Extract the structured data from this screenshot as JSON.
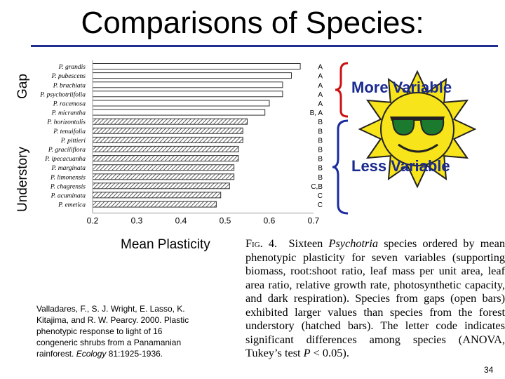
{
  "slide": {
    "title": "Comparisons of Species:",
    "y_label_gap": "Gap",
    "y_label_understory": "Understory",
    "callout_more": "More Variable",
    "callout_less": "Less Variable",
    "citation_text": "Valladares, F., S. J. Wright, E. Lasso, K. Kitajima, and R. W. Pearcy. 2000. Plastic phenotypic response to light of 16 congeneric shrubs from a Panamanian rainforest. ",
    "citation_journal": "Ecology",
    "citation_end": " 81:1925-1936.",
    "page_number": "34",
    "colors": {
      "title_rule": "#1f2f8f",
      "bracket_red": "#cc1111",
      "bracket_blue": "#1a2a9f",
      "sun": "#f7e41a",
      "callout": "#1a2a8f"
    }
  },
  "caption": {
    "fig_label": "Fig. 4.",
    "part1": "Sixteen ",
    "genus": "Psychotria",
    "part2": " species ordered by mean phenotypic plasticity for seven variables (supporting biomass, root:shoot ratio, leaf mass per unit area, leaf area ratio, relative growth rate, photosynthetic capacity, and dark respiration). Species from gaps (open bars) exhibited larger values than species from the forest understory (hatched bars). The letter code indicates significant differences among species (ANOVA, Tukey’s test ",
    "p_symbol": "P",
    "part3": " < 0.05)."
  },
  "chart_data": {
    "type": "bar",
    "orientation": "horizontal",
    "xlabel": "Mean Plasticity",
    "xlim": [
      0.2,
      0.7
    ],
    "xticks": [
      "0.2",
      "0.3",
      "0.4",
      "0.5",
      "0.6",
      "0.7"
    ],
    "categories": [
      "P. grandis",
      "P. pubescens",
      "P. brachiata",
      "P. psychotriifolia",
      "P. racemosa",
      "P. micrantha",
      "P. horizontalis",
      "P. tenuifolia",
      "P. pittieri",
      "P. graciliflora",
      "P. ipecacuanha",
      "P. marginata",
      "P. limonensis",
      "P. chagrensis",
      "P. acuminata",
      "P. emetica"
    ],
    "values": [
      0.67,
      0.65,
      0.63,
      0.63,
      0.6,
      0.59,
      0.55,
      0.54,
      0.54,
      0.53,
      0.53,
      0.52,
      0.52,
      0.51,
      0.49,
      0.48
    ],
    "habitat": [
      "gap",
      "gap",
      "gap",
      "gap",
      "gap",
      "gap",
      "understory",
      "understory",
      "understory",
      "understory",
      "understory",
      "understory",
      "understory",
      "understory",
      "understory",
      "understory"
    ],
    "letters": [
      "A",
      "A",
      "A",
      "A",
      "A",
      "B, A",
      "B",
      "B",
      "B",
      "B",
      "B",
      "B",
      "B",
      "C,B",
      "C",
      "C"
    ]
  }
}
